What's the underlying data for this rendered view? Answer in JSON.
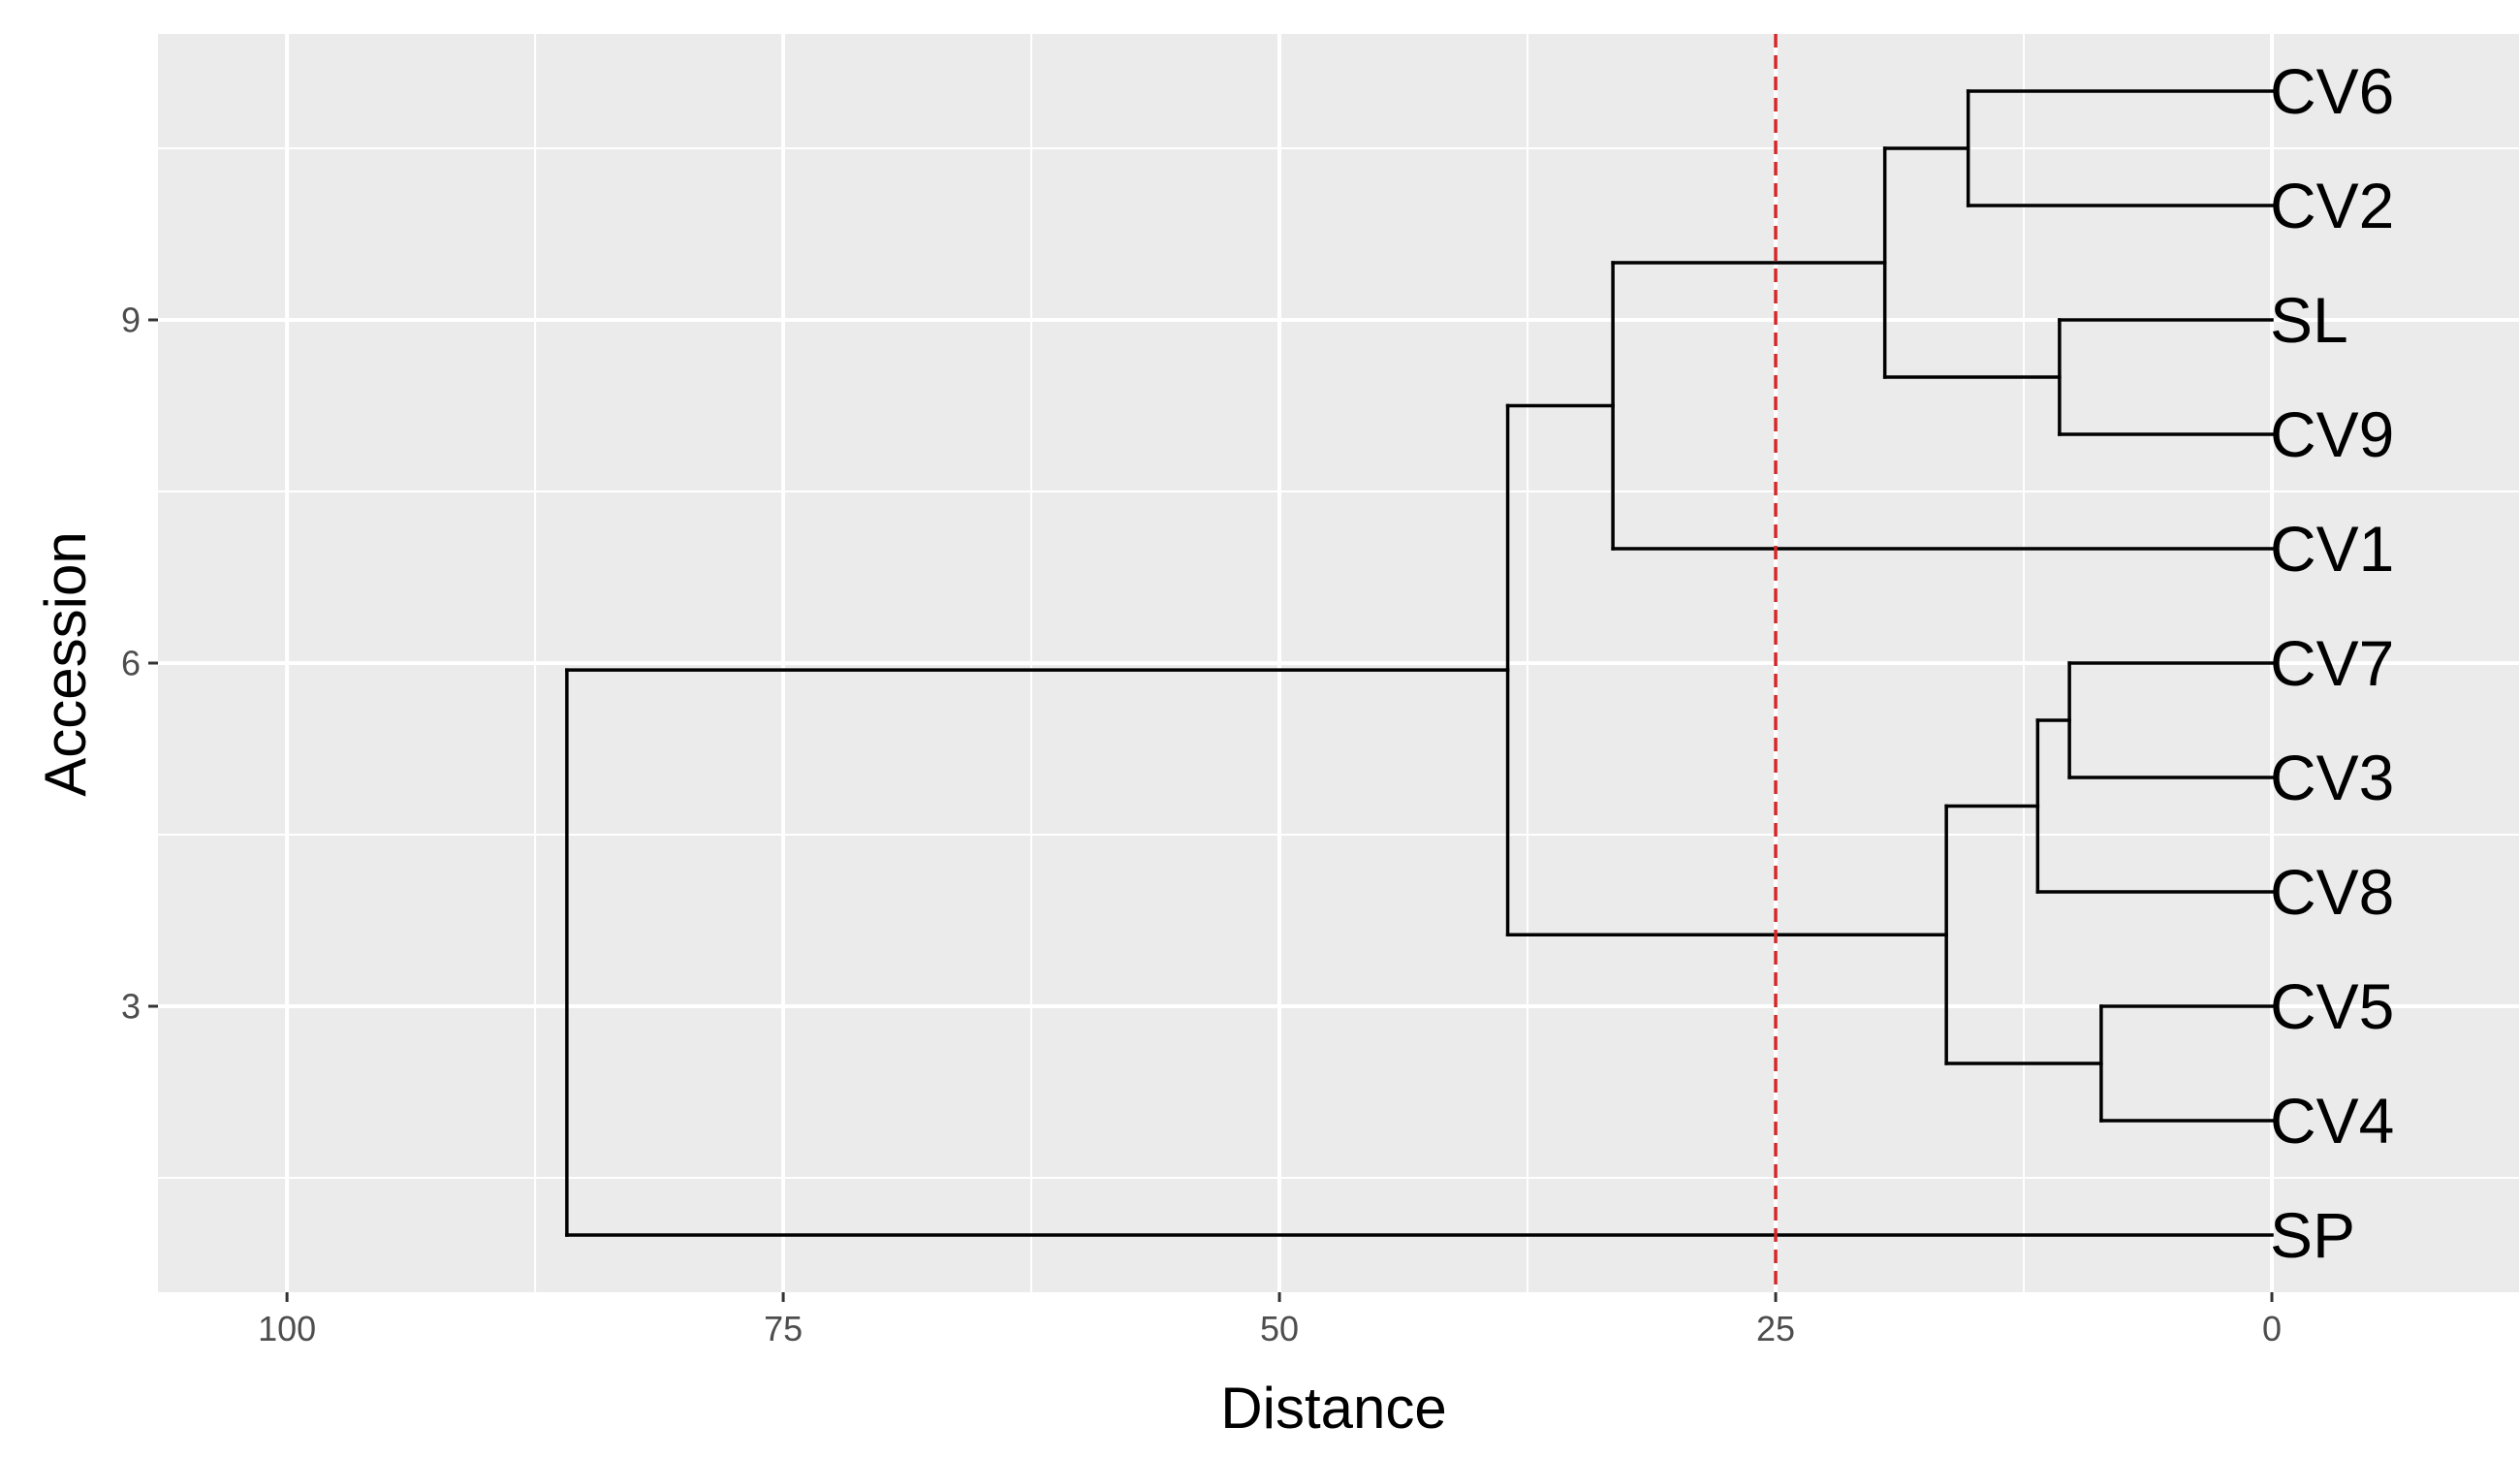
{
  "chart_data": {
    "type": "dendrogram",
    "title": "",
    "xlabel": "Distance",
    "ylabel": "Accession",
    "xlim": [
      106.5,
      -12.5
    ],
    "ylim": [
      0.5,
      11.5
    ],
    "x_reversed": true,
    "x_ticks": [
      100,
      75,
      50,
      25,
      0
    ],
    "x_tick_labels": [
      "100",
      "75",
      "50",
      "25",
      "0"
    ],
    "y_ticks": [
      3,
      6,
      9
    ],
    "y_tick_labels": [
      "3",
      "6",
      "9"
    ],
    "grid": true,
    "cut_height": 25,
    "cut_line_color": "#d62728",
    "panel_background": "#ebebeb",
    "gridline_color": "#ffffff",
    "line_color": "#000000",
    "leaves": [
      "CV6",
      "CV2",
      "SL",
      "CV9",
      "CV1",
      "CV7",
      "CV3",
      "CV8",
      "CV5",
      "CV4",
      "SP"
    ],
    "segments": [
      {
        "x1": 0,
        "y1": 11,
        "x2": 15.3,
        "y2": 11
      },
      {
        "x1": 0,
        "y1": 10,
        "x2": 15.3,
        "y2": 10
      },
      {
        "x1": 15.3,
        "y1": 11,
        "x2": 15.3,
        "y2": 10
      },
      {
        "x1": 15.3,
        "y1": 10.5,
        "x2": 19.5,
        "y2": 10.5
      },
      {
        "x1": 0,
        "y1": 9,
        "x2": 10.7,
        "y2": 9
      },
      {
        "x1": 0,
        "y1": 8,
        "x2": 10.7,
        "y2": 8
      },
      {
        "x1": 10.7,
        "y1": 9,
        "x2": 10.7,
        "y2": 8
      },
      {
        "x1": 10.7,
        "y1": 8.5,
        "x2": 19.5,
        "y2": 8.5
      },
      {
        "x1": 19.5,
        "y1": 10.5,
        "x2": 19.5,
        "y2": 8.5
      },
      {
        "x1": 19.5,
        "y1": 9.5,
        "x2": 33.2,
        "y2": 9.5
      },
      {
        "x1": 0,
        "y1": 7,
        "x2": 33.2,
        "y2": 7
      },
      {
        "x1": 33.2,
        "y1": 9.5,
        "x2": 33.2,
        "y2": 7
      },
      {
        "x1": 33.2,
        "y1": 8.25,
        "x2": 38.5,
        "y2": 8.25
      },
      {
        "x1": 0,
        "y1": 6,
        "x2": 10.2,
        "y2": 6
      },
      {
        "x1": 0,
        "y1": 5,
        "x2": 10.2,
        "y2": 5
      },
      {
        "x1": 10.2,
        "y1": 6,
        "x2": 10.2,
        "y2": 5
      },
      {
        "x1": 10.2,
        "y1": 5.5,
        "x2": 11.8,
        "y2": 5.5
      },
      {
        "x1": 0,
        "y1": 4,
        "x2": 11.8,
        "y2": 4
      },
      {
        "x1": 11.8,
        "y1": 5.5,
        "x2": 11.8,
        "y2": 4
      },
      {
        "x1": 11.8,
        "y1": 4.75,
        "x2": 16.4,
        "y2": 4.75
      },
      {
        "x1": 0,
        "y1": 3,
        "x2": 8.6,
        "y2": 3
      },
      {
        "x1": 0,
        "y1": 2,
        "x2": 8.6,
        "y2": 2
      },
      {
        "x1": 8.6,
        "y1": 3,
        "x2": 8.6,
        "y2": 2
      },
      {
        "x1": 8.6,
        "y1": 2.5,
        "x2": 16.4,
        "y2": 2.5
      },
      {
        "x1": 16.4,
        "y1": 4.75,
        "x2": 16.4,
        "y2": 2.5
      },
      {
        "x1": 16.4,
        "y1": 3.625,
        "x2": 38.5,
        "y2": 3.625
      },
      {
        "x1": 38.5,
        "y1": 8.25,
        "x2": 38.5,
        "y2": 3.625
      },
      {
        "x1": 38.5,
        "y1": 5.94,
        "x2": 85.9,
        "y2": 5.94
      },
      {
        "x1": 0,
        "y1": 1,
        "x2": 85.9,
        "y2": 1
      },
      {
        "x1": 85.9,
        "y1": 5.94,
        "x2": 85.9,
        "y2": 1
      }
    ]
  }
}
